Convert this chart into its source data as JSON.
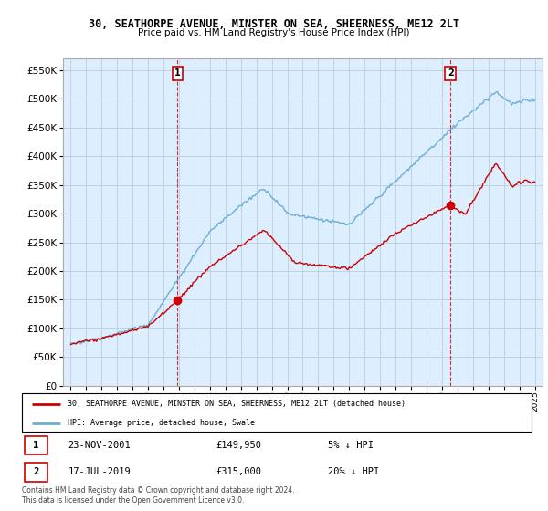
{
  "title": "30, SEATHORPE AVENUE, MINSTER ON SEA, SHEERNESS, ME12 2LT",
  "subtitle": "Price paid vs. HM Land Registry's House Price Index (HPI)",
  "ytick_values": [
    0,
    50000,
    100000,
    150000,
    200000,
    250000,
    300000,
    350000,
    400000,
    450000,
    500000,
    550000
  ],
  "ylim": [
    0,
    570000
  ],
  "transaction1": {
    "date": "2001-11-23",
    "price": 149950,
    "label": "1",
    "x": 2001.9
  },
  "transaction2": {
    "date": "2019-07-17",
    "price": 315000,
    "label": "2",
    "x": 2019.55
  },
  "legend_line1": "30, SEATHORPE AVENUE, MINSTER ON SEA, SHEERNESS, ME12 2LT (detached house)",
  "legend_line2": "HPI: Average price, detached house, Swale",
  "table_row1": [
    "1",
    "23-NOV-2001",
    "£149,950",
    "5% ↓ HPI"
  ],
  "table_row2": [
    "2",
    "17-JUL-2019",
    "£315,000",
    "20% ↓ HPI"
  ],
  "footer": "Contains HM Land Registry data © Crown copyright and database right 2024.\nThis data is licensed under the Open Government Licence v3.0.",
  "hpi_color": "#6baed6",
  "price_color": "#cc0000",
  "vline_color": "#cc0000",
  "chart_bg": "#ddeeff",
  "grid_color": "#bbccdd"
}
